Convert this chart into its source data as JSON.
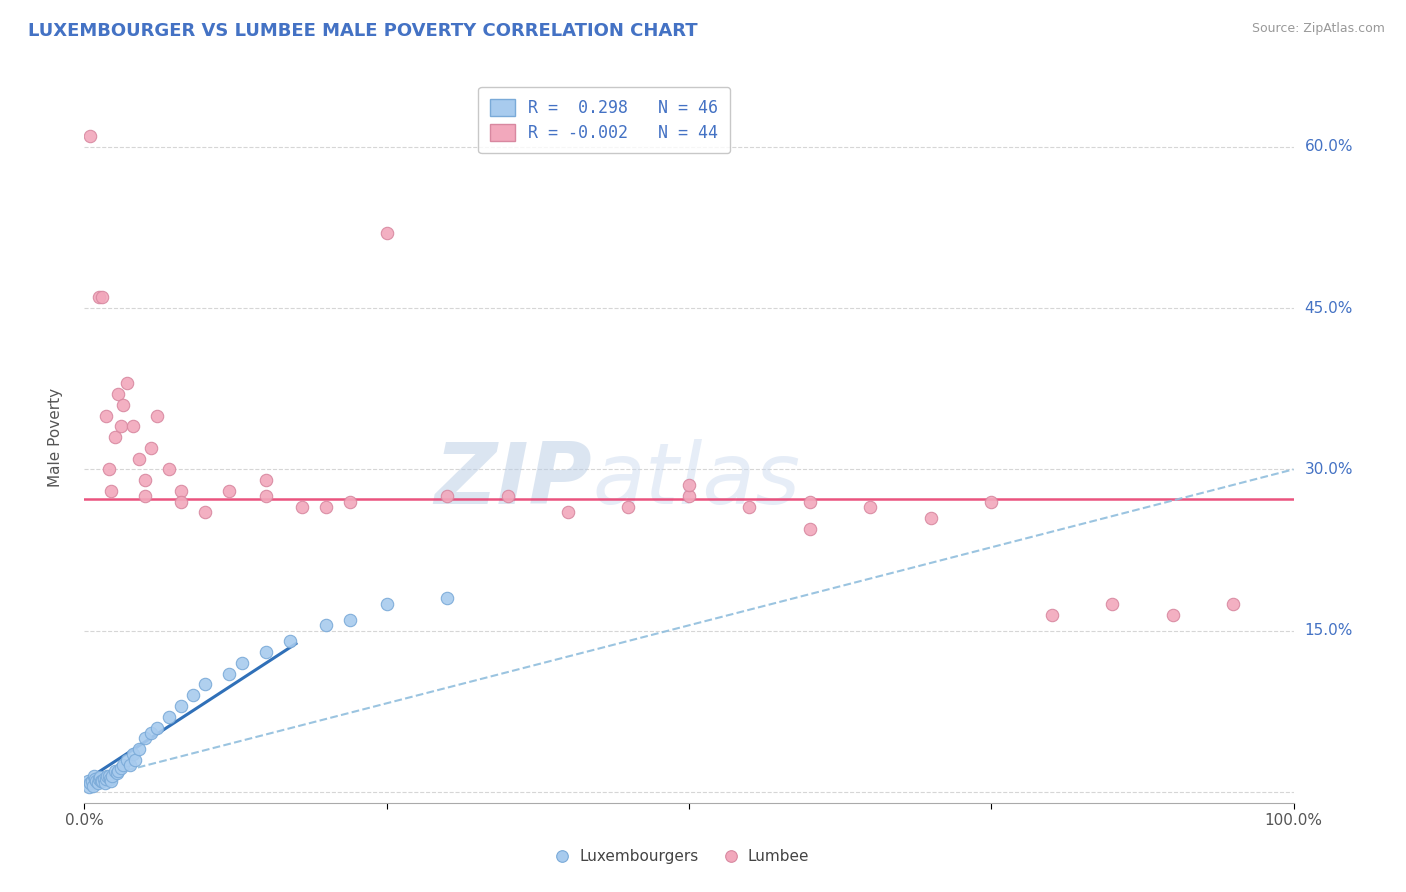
{
  "title": "LUXEMBOURGER VS LUMBEE MALE POVERTY CORRELATION CHART",
  "source": "Source: ZipAtlas.com",
  "ylabel": "Male Poverty",
  "yticks": [
    0.0,
    0.15,
    0.3,
    0.45,
    0.6
  ],
  "ytick_labels": [
    "",
    "15.0%",
    "30.0%",
    "45.0%",
    "60.0%"
  ],
  "xlim": [
    0.0,
    1.0
  ],
  "ylim": [
    -0.01,
    0.67
  ],
  "legend_blue_r": "R =  0.298",
  "legend_blue_n": "N = 46",
  "legend_pink_r": "R = -0.002",
  "legend_pink_n": "N = 44",
  "blue_color": "#A8CBEE",
  "pink_color": "#F2A8BC",
  "blue_edge_color": "#7AAAD8",
  "pink_edge_color": "#D888A0",
  "blue_line_color": "#3070B8",
  "pink_line_color": "#E84070",
  "blue_dashed_color": "#90BEDD",
  "watermark_color": "#C5D8EE",
  "background_color": "#FFFFFF",
  "grid_color": "#CCCCCC",
  "title_color": "#4472C4",
  "source_color": "#999999",
  "ylabel_color": "#555555",
  "tick_label_color": "#4472C4",
  "xtick_label_color": "#555555",
  "blue_scatter_x": [
    0.003,
    0.004,
    0.005,
    0.006,
    0.007,
    0.008,
    0.009,
    0.01,
    0.011,
    0.012,
    0.013,
    0.014,
    0.015,
    0.016,
    0.017,
    0.018,
    0.019,
    0.02,
    0.021,
    0.022,
    0.023,
    0.025,
    0.027,
    0.028,
    0.03,
    0.032,
    0.035,
    0.038,
    0.04,
    0.042,
    0.045,
    0.05,
    0.055,
    0.06,
    0.07,
    0.08,
    0.09,
    0.1,
    0.12,
    0.13,
    0.15,
    0.17,
    0.2,
    0.22,
    0.25,
    0.3
  ],
  "blue_scatter_y": [
    0.01,
    0.005,
    0.008,
    0.01,
    0.006,
    0.015,
    0.012,
    0.01,
    0.008,
    0.012,
    0.014,
    0.01,
    0.01,
    0.012,
    0.008,
    0.012,
    0.015,
    0.015,
    0.012,
    0.01,
    0.015,
    0.02,
    0.018,
    0.02,
    0.022,
    0.025,
    0.03,
    0.025,
    0.035,
    0.03,
    0.04,
    0.05,
    0.055,
    0.06,
    0.07,
    0.08,
    0.09,
    0.1,
    0.11,
    0.12,
    0.13,
    0.14,
    0.155,
    0.16,
    0.175,
    0.18
  ],
  "pink_scatter_x": [
    0.005,
    0.012,
    0.015,
    0.018,
    0.02,
    0.022,
    0.025,
    0.028,
    0.03,
    0.032,
    0.035,
    0.04,
    0.045,
    0.05,
    0.055,
    0.06,
    0.07,
    0.08,
    0.1,
    0.12,
    0.15,
    0.18,
    0.22,
    0.25,
    0.3,
    0.35,
    0.4,
    0.45,
    0.5,
    0.55,
    0.6,
    0.65,
    0.7,
    0.75,
    0.8,
    0.85,
    0.9,
    0.95,
    0.5,
    0.6,
    0.15,
    0.2,
    0.05,
    0.08
  ],
  "pink_scatter_y": [
    0.61,
    0.46,
    0.46,
    0.35,
    0.3,
    0.28,
    0.33,
    0.37,
    0.34,
    0.36,
    0.38,
    0.34,
    0.31,
    0.29,
    0.32,
    0.35,
    0.3,
    0.28,
    0.26,
    0.28,
    0.29,
    0.265,
    0.27,
    0.52,
    0.275,
    0.275,
    0.26,
    0.265,
    0.275,
    0.265,
    0.245,
    0.265,
    0.255,
    0.27,
    0.165,
    0.175,
    0.165,
    0.175,
    0.285,
    0.27,
    0.275,
    0.265,
    0.275,
    0.27
  ],
  "blue_trend_x": [
    0.0,
    0.175
  ],
  "blue_trend_y": [
    0.01,
    0.138
  ],
  "blue_dashed_trend_x": [
    0.0,
    1.0
  ],
  "blue_dashed_trend_y": [
    0.01,
    0.3
  ],
  "pink_trend_x": [
    0.0,
    1.0
  ],
  "pink_trend_y": [
    0.272,
    0.272
  ]
}
